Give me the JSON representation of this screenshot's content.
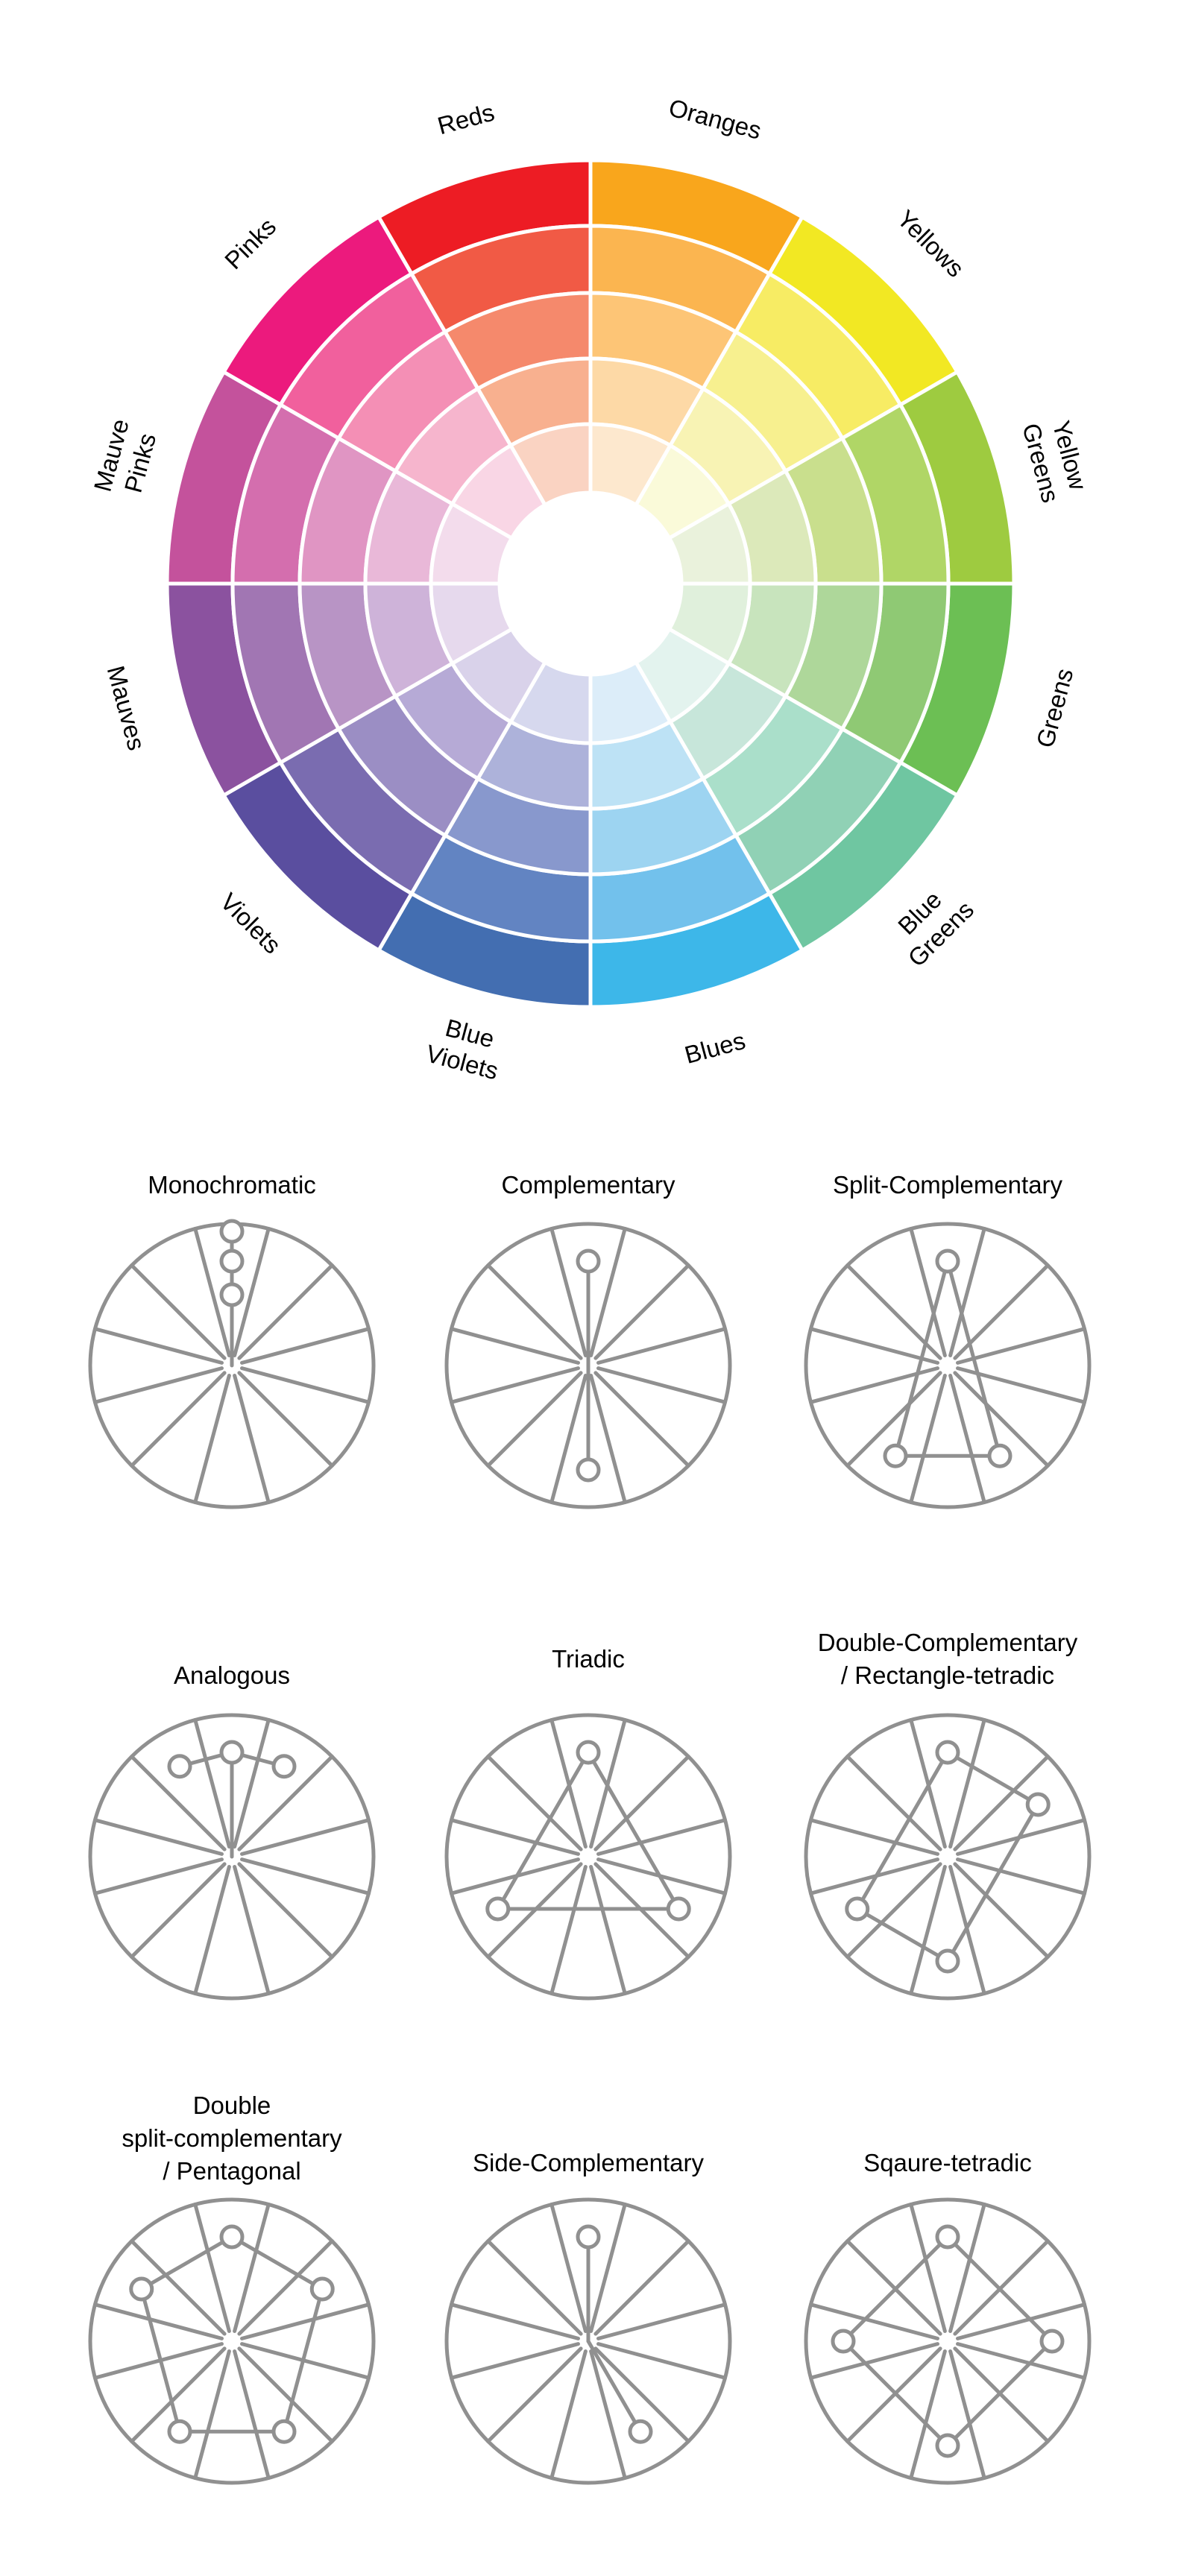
{
  "wheel": {
    "segments": [
      {
        "label": "Oranges",
        "colors": [
          "#f9a61c",
          "#fbb550",
          "#fdc576",
          "#fdd9a6",
          "#fde8ce"
        ]
      },
      {
        "label": "Yellows",
        "colors": [
          "#f2e823",
          "#f7ec64",
          "#f7f08f",
          "#f8f3b4",
          "#fafad9"
        ]
      },
      {
        "label": "Yellow\nGreens",
        "colors": [
          "#9ecb40",
          "#b0d666",
          "#c9df8d",
          "#dce9ba",
          "#eaf2dc"
        ]
      },
      {
        "label": "Greens",
        "colors": [
          "#6cbf54",
          "#8fc974",
          "#aed79a",
          "#c8e4bd",
          "#e0f0dc"
        ]
      },
      {
        "label": "Blue\nGreens",
        "colors": [
          "#6fc6a1",
          "#90d1b5",
          "#aadfca",
          "#c7e6da",
          "#e3f3ee"
        ]
      },
      {
        "label": "Blues",
        "colors": [
          "#3db7e9",
          "#72c1ec",
          "#9dd4f1",
          "#bde2f5",
          "#dcedf9"
        ]
      },
      {
        "label": "Blue\nViolets",
        "colors": [
          "#436eb1",
          "#6284c2",
          "#8898cd",
          "#adb2da",
          "#d6d8ee"
        ]
      },
      {
        "label": "Violets",
        "colors": [
          "#5a4e9f",
          "#7a6cb0",
          "#9b8ec4",
          "#b6aad6",
          "#d9d2ea"
        ]
      },
      {
        "label": "Mauves",
        "colors": [
          "#8b529f",
          "#a176b3",
          "#b894c5",
          "#ceb3d9",
          "#e6d9ed"
        ]
      },
      {
        "label": "Mauve\nPinks",
        "colors": [
          "#c4529c",
          "#d46eae",
          "#e095c3",
          "#e9b8d8",
          "#f3dcec"
        ]
      },
      {
        "label": "Pinks",
        "colors": [
          "#ec1a7d",
          "#f1609d",
          "#f48fb5",
          "#f6b5cd",
          "#f9d6e5"
        ]
      },
      {
        "label": "Reds",
        "colors": [
          "#ed1c24",
          "#f15a45",
          "#f5896c",
          "#f8b08f",
          "#fad3c2"
        ]
      }
    ]
  },
  "schemes": [
    {
      "title": "Monochromatic",
      "dots": [
        0,
        0,
        0
      ],
      "dot_rings": [
        3,
        2,
        1
      ],
      "lines": [
        [
          0,
          1
        ],
        [
          1,
          2
        ]
      ],
      "center_link": [
        2
      ]
    },
    {
      "title": "Complementary",
      "dots": [
        0,
        6
      ],
      "dot_rings": [
        2,
        2
      ],
      "lines": [],
      "center_link": [
        0,
        1
      ]
    },
    {
      "title": "Split-Complementary",
      "dots": [
        0,
        5,
        7
      ],
      "dot_rings": [
        2,
        2,
        2
      ],
      "lines": [
        [
          0,
          1
        ],
        [
          1,
          2
        ],
        [
          2,
          0
        ]
      ],
      "center_link": []
    },
    {
      "title": "Analogous",
      "dots": [
        11,
        0,
        1
      ],
      "dot_rings": [
        2,
        2,
        2
      ],
      "lines": [
        [
          0,
          1
        ],
        [
          1,
          2
        ]
      ],
      "center_link": [
        1
      ]
    },
    {
      "title": "Triadic",
      "dots": [
        0,
        4,
        8
      ],
      "dot_rings": [
        2,
        2,
        2
      ],
      "lines": [
        [
          0,
          1
        ],
        [
          1,
          2
        ],
        [
          2,
          0
        ]
      ],
      "center_link": []
    },
    {
      "title": "Double-Complementary\n/ Rectangle-tetradic",
      "dots": [
        0,
        2,
        6,
        8
      ],
      "dot_rings": [
        2,
        2,
        2,
        2
      ],
      "lines": [
        [
          0,
          1
        ],
        [
          1,
          2
        ],
        [
          2,
          3
        ],
        [
          3,
          0
        ]
      ],
      "center_link": []
    },
    {
      "title": "Double\nsplit-complementary\n/ Pentagonal",
      "dots": [
        0,
        2,
        5,
        7,
        10
      ],
      "dot_rings": [
        2,
        2,
        2,
        2,
        2
      ],
      "lines": [
        [
          0,
          1
        ],
        [
          1,
          2
        ],
        [
          2,
          3
        ],
        [
          3,
          4
        ],
        [
          4,
          0
        ]
      ],
      "center_link": []
    },
    {
      "title": "Side-Complementary",
      "dots": [
        0,
        5
      ],
      "dot_rings": [
        2,
        2
      ],
      "lines": [],
      "center_link": [
        0,
        1
      ]
    },
    {
      "title": "Sqaure-tetradic",
      "dots": [
        0,
        3,
        6,
        9
      ],
      "dot_rings": [
        2,
        2,
        2,
        2
      ],
      "lines": [
        [
          0,
          1
        ],
        [
          1,
          2
        ],
        [
          2,
          3
        ],
        [
          3,
          0
        ]
      ],
      "center_link": []
    }
  ],
  "colors": {
    "diagram_line": "#909090",
    "separator": "#ffffff",
    "text": "#000000"
  }
}
